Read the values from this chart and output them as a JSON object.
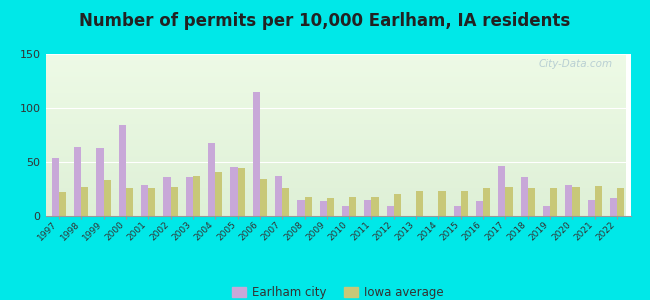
{
  "title": "Number of permits per 10,000 Earlham, IA residents",
  "years": [
    1997,
    1998,
    1999,
    2000,
    2001,
    2002,
    2003,
    2004,
    2005,
    2006,
    2007,
    2008,
    2009,
    2010,
    2011,
    2012,
    2013,
    2014,
    2015,
    2016,
    2017,
    2018,
    2019,
    2020,
    2021,
    2022
  ],
  "earlham": [
    54,
    64,
    63,
    84,
    29,
    36,
    36,
    68,
    45,
    115,
    37,
    15,
    14,
    9,
    15,
    9,
    0,
    0,
    9,
    14,
    46,
    36,
    9,
    29,
    15,
    17
  ],
  "iowa": [
    22,
    27,
    33,
    26,
    26,
    27,
    37,
    41,
    44,
    34,
    26,
    18,
    17,
    18,
    18,
    20,
    23,
    23,
    23,
    26,
    27,
    26,
    26,
    27,
    28,
    26
  ],
  "earlham_color": "#c8a8d8",
  "iowa_color": "#c8c878",
  "bg_outer": "#00e8e8",
  "ylim": [
    0,
    150
  ],
  "yticks": [
    0,
    50,
    100,
    150
  ],
  "title_fontsize": 12,
  "title_color": "#222222",
  "legend_label_earlham": "Earlham city",
  "legend_label_iowa": "Iowa average",
  "bar_width": 0.32,
  "watermark": "City-Data.com"
}
